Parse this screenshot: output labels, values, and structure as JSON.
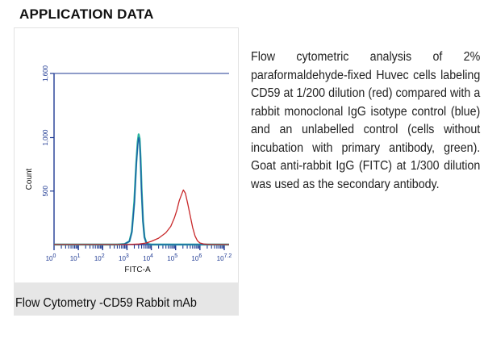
{
  "heading": "APPLICATION DATA",
  "caption": "Flow Cytometry -CD59 Rabbit mAb",
  "description": "Flow cytometric analysis of 2% paraformaldehyde-fixed Huvec cells labeling CD59 at 1/200 dilution (red) compared with a rabbit monoclonal IgG isotype control (blue) and an unlabelled control (cells without incubation with primary antibody, green). Goat anti-rabbit IgG (FITC) at 1/300 dilution was used as the secondary antibody.",
  "chart_data": {
    "type": "line",
    "xlabel": "FITC-A",
    "ylabel": "Count",
    "xscale": "log",
    "xlim": [
      0,
      7.2
    ],
    "ylim": [
      0,
      1600
    ],
    "x_tick_labels": [
      {
        "base": "10",
        "exp": "0",
        "value": 0
      },
      {
        "base": "10",
        "exp": "1",
        "value": 1
      },
      {
        "base": "10",
        "exp": "2",
        "value": 2
      },
      {
        "base": "10",
        "exp": "3",
        "value": 3
      },
      {
        "base": "10",
        "exp": "4",
        "value": 4
      },
      {
        "base": "10",
        "exp": "5",
        "value": 5
      },
      {
        "base": "10",
        "exp": "6",
        "value": 6
      },
      {
        "base": "10",
        "exp": "7.2",
        "value": 7.2
      }
    ],
    "y_ticks": [
      {
        "label": "500",
        "value": 500
      },
      {
        "label": "1,000",
        "value": 1000
      },
      {
        "label": "1,600",
        "value": 1600
      }
    ],
    "grid": false,
    "colors": {
      "axis": "#1f3a93",
      "red": "#c8282a",
      "blue": "#1e5aa8",
      "green": "#2bb5a0"
    },
    "series": [
      {
        "name": "unlabelled control",
        "color": "#2bb5a0",
        "x": [
          2.6,
          2.9,
          3.1,
          3.2,
          3.3,
          3.38,
          3.44,
          3.48,
          3.52,
          3.56,
          3.6,
          3.66,
          3.72,
          3.8,
          3.9,
          4.0
        ],
        "y": [
          0,
          5,
          30,
          120,
          400,
          760,
          960,
          1030,
          990,
          800,
          520,
          220,
          70,
          15,
          3,
          0
        ]
      },
      {
        "name": "isotype control",
        "color": "#1e5aa8",
        "x": [
          2.6,
          2.9,
          3.1,
          3.2,
          3.3,
          3.38,
          3.44,
          3.48,
          3.52,
          3.56,
          3.6,
          3.66,
          3.72,
          3.8,
          3.9,
          4.0
        ],
        "y": [
          0,
          5,
          30,
          110,
          380,
          730,
          930,
          1000,
          960,
          780,
          500,
          210,
          65,
          14,
          3,
          0
        ]
      },
      {
        "name": "CD59",
        "color": "#c8282a",
        "x": [
          3.0,
          3.5,
          3.8,
          4.0,
          4.3,
          4.6,
          4.8,
          4.95,
          5.05,
          5.15,
          5.25,
          5.32,
          5.4,
          5.5,
          5.6,
          5.7,
          5.8,
          5.9,
          6.0,
          6.15,
          6.3,
          6.5
        ],
        "y": [
          0,
          5,
          15,
          30,
          60,
          110,
          170,
          250,
          320,
          410,
          470,
          510,
          480,
          380,
          270,
          160,
          80,
          35,
          15,
          5,
          2,
          0
        ]
      }
    ]
  }
}
